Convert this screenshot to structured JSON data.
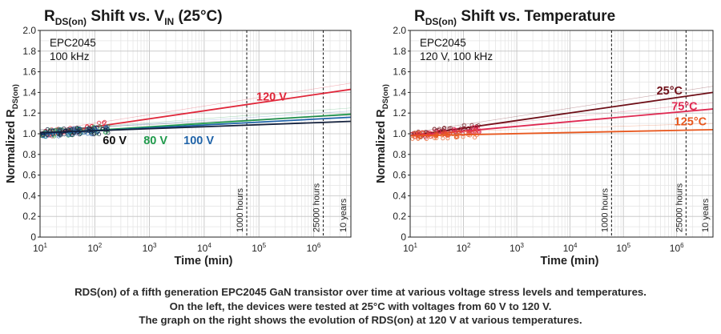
{
  "chart_data": [
    {
      "type": "line",
      "title": "RDS(on) Shift vs. VIN (25°C)",
      "title_parts": {
        "main": "R",
        "sub": "DS(on)",
        "mid": " Shift vs. V",
        "sub2": "IN",
        "tail": " (25°C)"
      },
      "xlabel": "Time (min)",
      "ylabel": "Normalized RDS(on)",
      "ylabel_parts": {
        "main": "Normalized R",
        "sub": "DS(on)"
      },
      "x_scale": "log",
      "xlim": [
        10,
        4800000
      ],
      "ylim": [
        0,
        2.0
      ],
      "x_ticks": [
        {
          "value": 10,
          "base": "10",
          "exp": "1"
        },
        {
          "value": 100,
          "base": "10",
          "exp": "2"
        },
        {
          "value": 1000,
          "base": "10",
          "exp": "3"
        },
        {
          "value": 10000,
          "base": "10",
          "exp": "4"
        },
        {
          "value": 100000,
          "base": "10",
          "exp": "5"
        },
        {
          "value": 1000000,
          "base": "10",
          "exp": "6"
        }
      ],
      "y_ticks": [
        "0",
        "0.2",
        "0.4",
        "0.6",
        "0.8",
        "1.0",
        "1.2",
        "1.4",
        "1.6",
        "1.8",
        "2.0"
      ],
      "grid": true,
      "inset_label": [
        "EPC2045",
        "100 kHz"
      ],
      "vlines": [
        {
          "x": 60000,
          "label": "1000 hours"
        },
        {
          "x": 1500000,
          "label": "25000 hours"
        },
        {
          "x": 5256000,
          "label": "10 years"
        }
      ],
      "series": [
        {
          "name": "120 V",
          "color": "#e0273a",
          "x": [
            10,
            4800000
          ],
          "values": [
            0.99,
            1.43
          ],
          "scatter_end": 180
        },
        {
          "name": "80 V",
          "color": "#1f9a4b",
          "x": [
            10,
            4800000
          ],
          "values": [
            1.0,
            1.19
          ],
          "scatter_end": 180
        },
        {
          "name": "100 V",
          "color": "#1f63a8",
          "x": [
            10,
            4800000
          ],
          "values": [
            1.0,
            1.16
          ],
          "scatter_end": 180
        },
        {
          "name": "60 V",
          "color": "#14213d",
          "x": [
            10,
            4800000
          ],
          "values": [
            1.01,
            1.12
          ],
          "scatter_end": 180
        }
      ],
      "annotations": [
        {
          "text": "120 V",
          "color": "#e0273a",
          "x": 90000,
          "y": 1.32
        },
        {
          "text": "60 V",
          "color": "#111111",
          "x": 140,
          "y": 0.9
        },
        {
          "text": "80 V",
          "color": "#1f9a4b",
          "x": 780,
          "y": 0.9
        },
        {
          "text": "100 V",
          "color": "#1f63a8",
          "x": 4200,
          "y": 0.9
        }
      ]
    },
    {
      "type": "line",
      "title": "RDS(on) Shift vs. Temperature",
      "title_parts": {
        "main": "R",
        "sub": "DS(on)",
        "mid": " Shift vs. Temperature",
        "sub2": "",
        "tail": ""
      },
      "xlabel": "Time (min)",
      "ylabel": "Normalized RDS(on)",
      "ylabel_parts": {
        "main": "Normalized R",
        "sub": "DS(on)"
      },
      "x_scale": "log",
      "xlim": [
        10,
        4800000
      ],
      "ylim": [
        0,
        2.0
      ],
      "x_ticks": [
        {
          "value": 10,
          "base": "10",
          "exp": "1"
        },
        {
          "value": 100,
          "base": "10",
          "exp": "2"
        },
        {
          "value": 1000,
          "base": "10",
          "exp": "3"
        },
        {
          "value": 10000,
          "base": "10",
          "exp": "4"
        },
        {
          "value": 100000,
          "base": "10",
          "exp": "5"
        },
        {
          "value": 1000000,
          "base": "10",
          "exp": "6"
        }
      ],
      "y_ticks": [
        "0",
        "0.2",
        "0.4",
        "0.6",
        "0.8",
        "1.0",
        "1.2",
        "1.4",
        "1.6",
        "1.8",
        "2.0"
      ],
      "grid": true,
      "inset_label": [
        "EPC2045",
        "120 V, 100 kHz"
      ],
      "vlines": [
        {
          "x": 60000,
          "label": "1000 hours"
        },
        {
          "x": 1500000,
          "label": "25000 hours"
        },
        {
          "x": 5256000,
          "label": "10 years"
        }
      ],
      "series": [
        {
          "name": "25°C",
          "color": "#6e0e17",
          "x": [
            10,
            4800000
          ],
          "values": [
            0.98,
            1.4
          ],
          "scatter_end": 200
        },
        {
          "name": "75°C",
          "color": "#df2a52",
          "x": [
            10,
            4800000
          ],
          "values": [
            0.98,
            1.24
          ],
          "scatter_end": 200
        },
        {
          "name": "125°C",
          "color": "#e8581f",
          "x": [
            10,
            4800000
          ],
          "values": [
            0.98,
            1.04
          ],
          "scatter_end": 200
        }
      ],
      "annotations": [
        {
          "text": "25°C",
          "color": "#6e0e17",
          "x": 420000,
          "y": 1.38
        },
        {
          "text": "75°C",
          "color": "#df2a52",
          "x": 800000,
          "y": 1.23
        },
        {
          "text": "125°C",
          "color": "#e8581f",
          "x": 900000,
          "y": 1.08
        }
      ]
    }
  ],
  "caption": [
    "RDS(on) of a fifth generation EPC2045 GaN transistor over time at various voltage stress levels and temperatures.",
    "On the left, the devices were tested at 25°C with voltages from 60 V to 120 V.",
    "The graph on  the right shows the evolution of RDS(on) at 120 V at various temperatures."
  ]
}
